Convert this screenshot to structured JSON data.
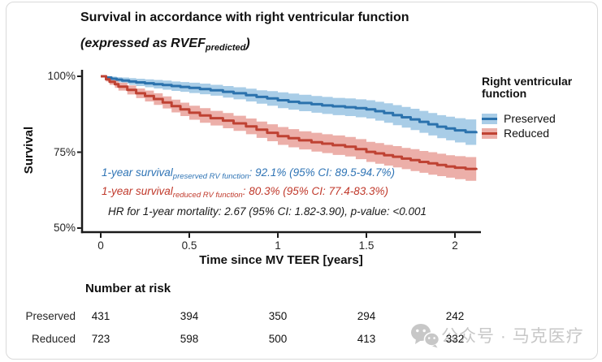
{
  "header": {
    "title": "Survival in accordance with right ventricular function",
    "subtitle_pre": "(expressed as RVEF",
    "subtitle_sub": "predicted",
    "subtitle_post": ")"
  },
  "chart_data": {
    "type": "line",
    "subtype": "kaplan-meier-step-with-ci-bands",
    "title": "Survival in accordance with right ventricular function (expressed as RVEF predicted)",
    "xlabel": "Time since MV TEER [years]",
    "ylabel": "Survival",
    "xlim": [
      0,
      2.12
    ],
    "ylim": [
      50,
      100
    ],
    "grid": false,
    "legend_title": "Right ventricular function",
    "legend_position": "right",
    "y_ticks": [
      {
        "label": "100%",
        "value": 100
      },
      {
        "label": "75%",
        "value": 75
      },
      {
        "label": "50%",
        "value": 50
      }
    ],
    "x_ticks": [
      {
        "label": "0",
        "value": 0
      },
      {
        "label": "0.5",
        "value": 0.5
      },
      {
        "label": "1",
        "value": 1
      },
      {
        "label": "1.5",
        "value": 1.5
      },
      {
        "label": "2",
        "value": 2
      }
    ],
    "series": [
      {
        "name": "Preserved",
        "color": "#2b72ad",
        "band_color": "#a9cde7",
        "point_format": [
          "time_years",
          "survival_pct",
          "ci_low_pct",
          "ci_high_pct"
        ],
        "points": [
          [
            0.0,
            100,
            100,
            100
          ],
          [
            0.03,
            99.6,
            99.1,
            100
          ],
          [
            0.06,
            99.2,
            98.4,
            99.9
          ],
          [
            0.09,
            98.9,
            98.0,
            99.7
          ],
          [
            0.12,
            98.6,
            97.6,
            99.6
          ],
          [
            0.16,
            98.3,
            97.2,
            99.4
          ],
          [
            0.2,
            98.0,
            96.8,
            99.2
          ],
          [
            0.25,
            97.7,
            96.4,
            99.0
          ],
          [
            0.3,
            97.4,
            96.0,
            98.8
          ],
          [
            0.35,
            97.1,
            95.6,
            98.6
          ],
          [
            0.4,
            96.8,
            95.2,
            98.3
          ],
          [
            0.45,
            96.5,
            94.9,
            98.1
          ],
          [
            0.5,
            96.2,
            94.5,
            97.9
          ],
          [
            0.56,
            95.8,
            94.1,
            97.6
          ],
          [
            0.62,
            95.4,
            93.6,
            97.2
          ],
          [
            0.69,
            94.9,
            93.0,
            96.8
          ],
          [
            0.75,
            94.4,
            92.4,
            96.4
          ],
          [
            0.82,
            93.8,
            91.7,
            95.9
          ],
          [
            0.88,
            93.2,
            91.0,
            95.4
          ],
          [
            0.94,
            92.7,
            90.3,
            95.1
          ],
          [
            1.0,
            92.1,
            89.5,
            94.7
          ],
          [
            1.06,
            91.6,
            89.0,
            94.3
          ],
          [
            1.12,
            91.2,
            88.5,
            93.9
          ],
          [
            1.19,
            90.8,
            88.0,
            93.5
          ],
          [
            1.25,
            90.4,
            87.6,
            93.2
          ],
          [
            1.31,
            90.1,
            87.2,
            92.9
          ],
          [
            1.38,
            89.8,
            86.9,
            92.7
          ],
          [
            1.44,
            89.5,
            86.5,
            92.4
          ],
          [
            1.5,
            89.1,
            86.1,
            92.1
          ],
          [
            1.55,
            88.5,
            85.4,
            91.6
          ],
          [
            1.6,
            87.9,
            84.7,
            91.1
          ],
          [
            1.65,
            87.2,
            83.9,
            90.5
          ],
          [
            1.7,
            86.5,
            83.1,
            89.9
          ],
          [
            1.75,
            85.8,
            82.3,
            89.3
          ],
          [
            1.8,
            85.0,
            81.4,
            88.6
          ],
          [
            1.85,
            84.2,
            80.5,
            87.9
          ],
          [
            1.9,
            83.4,
            79.6,
            87.2
          ],
          [
            1.95,
            82.8,
            78.9,
            86.7
          ],
          [
            2.0,
            82.2,
            78.2,
            86.2
          ],
          [
            2.06,
            81.6,
            77.4,
            85.8
          ],
          [
            2.12,
            81.2,
            76.8,
            85.6
          ]
        ]
      },
      {
        "name": "Reduced",
        "color": "#bf4233",
        "band_color": "#ecafa9",
        "point_format": [
          "time_years",
          "survival_pct",
          "ci_low_pct",
          "ci_high_pct"
        ],
        "points": [
          [
            0.0,
            100,
            100,
            100
          ],
          [
            0.03,
            99.0,
            98.3,
            99.7
          ],
          [
            0.05,
            98.2,
            97.2,
            99.2
          ],
          [
            0.08,
            97.4,
            96.2,
            98.6
          ],
          [
            0.1,
            96.6,
            95.3,
            97.9
          ],
          [
            0.15,
            95.5,
            94.0,
            97.0
          ],
          [
            0.2,
            94.4,
            92.8,
            96.0
          ],
          [
            0.25,
            93.5,
            91.7,
            95.3
          ],
          [
            0.3,
            92.5,
            90.6,
            94.4
          ],
          [
            0.35,
            91.4,
            89.4,
            93.4
          ],
          [
            0.4,
            90.2,
            88.1,
            92.3
          ],
          [
            0.45,
            89.1,
            86.9,
            91.3
          ],
          [
            0.5,
            88.0,
            85.7,
            90.3
          ],
          [
            0.56,
            87.1,
            84.7,
            89.5
          ],
          [
            0.62,
            86.2,
            83.8,
            88.6
          ],
          [
            0.69,
            85.4,
            82.9,
            87.9
          ],
          [
            0.75,
            84.5,
            82.0,
            87.0
          ],
          [
            0.82,
            83.5,
            80.9,
            86.1
          ],
          [
            0.88,
            82.4,
            79.7,
            85.1
          ],
          [
            0.94,
            81.4,
            78.6,
            84.2
          ],
          [
            1.0,
            80.3,
            77.4,
            83.3
          ],
          [
            1.06,
            79.6,
            76.6,
            82.6
          ],
          [
            1.12,
            78.9,
            75.9,
            81.9
          ],
          [
            1.19,
            78.3,
            75.2,
            81.4
          ],
          [
            1.25,
            77.8,
            74.7,
            80.9
          ],
          [
            1.31,
            77.3,
            74.1,
            80.5
          ],
          [
            1.38,
            76.8,
            73.6,
            80.0
          ],
          [
            1.44,
            76.0,
            72.7,
            79.3
          ],
          [
            1.5,
            75.1,
            71.8,
            78.4
          ],
          [
            1.55,
            74.6,
            71.2,
            78.0
          ],
          [
            1.6,
            74.0,
            70.6,
            77.4
          ],
          [
            1.65,
            73.5,
            70.0,
            77.0
          ],
          [
            1.7,
            72.9,
            69.4,
            76.4
          ],
          [
            1.75,
            72.4,
            68.8,
            76.0
          ],
          [
            1.8,
            71.8,
            68.2,
            75.4
          ],
          [
            1.85,
            71.3,
            67.6,
            75.0
          ],
          [
            1.9,
            70.8,
            67.1,
            74.5
          ],
          [
            1.95,
            70.3,
            66.6,
            74.0
          ],
          [
            2.0,
            69.9,
            66.1,
            73.7
          ],
          [
            2.06,
            69.5,
            65.6,
            73.4
          ],
          [
            2.12,
            69.2,
            65.2,
            73.2
          ]
        ]
      }
    ]
  },
  "annotations": {
    "line1": {
      "pre": "1-year survival",
      "sub": "preserved RV function",
      "post": ": 92.1% (95% CI: 89.5-94.7%)"
    },
    "line2": {
      "pre": "1-year survival",
      "sub": "reduced RV function",
      "post": ": 80.3% (95% CI: 77.4-83.3%)"
    },
    "line3": "HR for 1-year mortality: 2.67 (95% CI: 1.82-3.90), p-value: <0.001"
  },
  "risk_table": {
    "header": "Number at risk",
    "time_points": [
      0,
      0.5,
      1,
      1.5,
      2
    ],
    "rows": [
      {
        "label": "Preserved",
        "counts": [
          431,
          394,
          350,
          294,
          242
        ]
      },
      {
        "label": "Reduced",
        "counts": [
          723,
          598,
          500,
          413,
          332
        ]
      }
    ]
  },
  "watermark": {
    "icon": "wechat-icon",
    "text": "公众号 · 马克医疗"
  },
  "colors": {
    "preserved_line": "#2b72ad",
    "preserved_band": "#a9cde7",
    "reduced_line": "#bf4233",
    "reduced_band": "#ecafa9",
    "annotation_blue": "#2f74b5",
    "annotation_red": "#c0392b",
    "axis": "#1a1a1a",
    "watermark": "#c7c7c7",
    "frame_border": "#d9d9d9"
  }
}
